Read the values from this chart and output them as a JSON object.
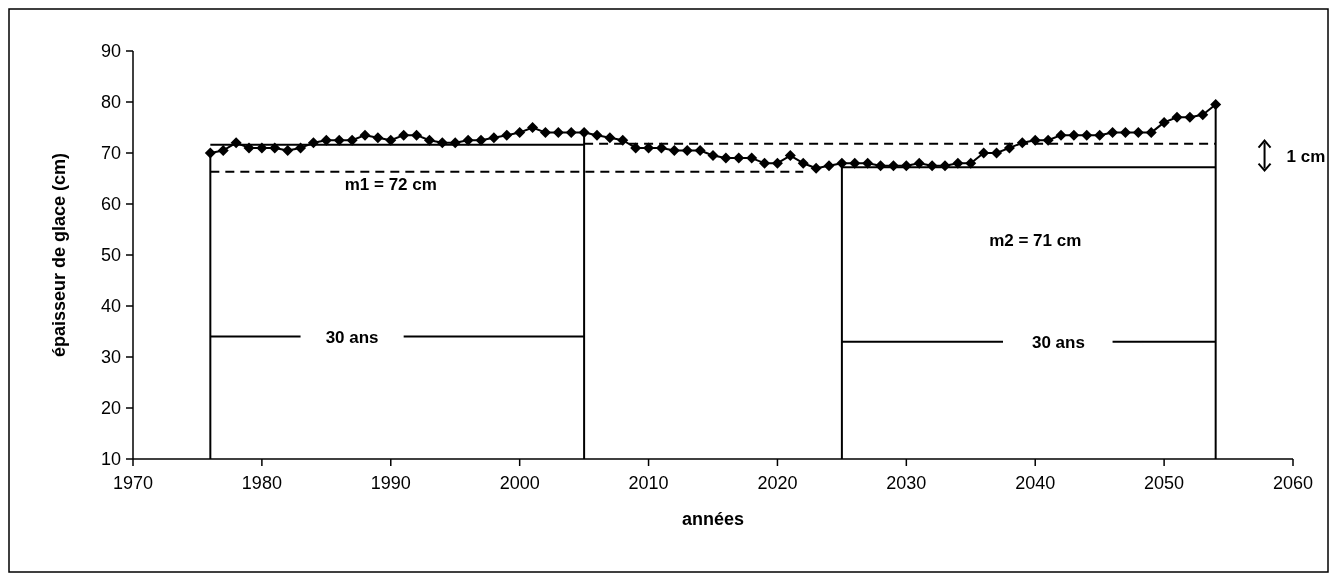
{
  "chart_data": {
    "type": "line",
    "xlabel": "années",
    "ylabel": "épaisseur de glace (cm)",
    "xlim": [
      1970,
      2060
    ],
    "xticks": [
      1970,
      1980,
      1990,
      2000,
      2010,
      2020,
      2030,
      2040,
      2050,
      2060
    ],
    "ylim": [
      10,
      90
    ],
    "yticks": [
      10,
      20,
      30,
      40,
      50,
      60,
      70,
      80,
      90
    ],
    "grid": false,
    "marker": "diamond",
    "line_style": "solid",
    "series": [
      {
        "color": "#000000",
        "x": [
          1976,
          1977,
          1978,
          1979,
          1980,
          1981,
          1982,
          1983,
          1984,
          1985,
          1986,
          1987,
          1988,
          1989,
          1990,
          1991,
          1992,
          1993,
          1994,
          1995,
          1996,
          1997,
          1998,
          1999,
          2000,
          2001,
          2002,
          2003,
          2004,
          2005,
          2006,
          2007,
          2008,
          2009,
          2010,
          2011,
          2012,
          2013,
          2014,
          2015,
          2016,
          2017,
          2018,
          2019,
          2020,
          2021,
          2022,
          2023,
          2024,
          2025,
          2026,
          2027,
          2028,
          2029,
          2030,
          2031,
          2032,
          2033,
          2034,
          2035,
          2036,
          2037,
          2038,
          2039,
          2040,
          2041,
          2042,
          2043,
          2044,
          2045,
          2046,
          2047,
          2048,
          2049,
          2050,
          2051,
          2052,
          2053,
          2054
        ],
        "values": [
          70,
          70.5,
          72,
          71,
          71,
          71,
          70.5,
          71,
          72,
          72.5,
          72.5,
          72.5,
          73.5,
          73,
          72.5,
          73.5,
          73.5,
          72.5,
          72,
          72,
          72.5,
          72.5,
          73,
          73.5,
          74,
          75,
          74,
          74,
          74,
          74,
          73.5,
          73,
          72.5,
          71,
          71,
          71,
          70.5,
          70.5,
          70.5,
          69.5,
          69,
          69,
          69,
          68,
          68,
          69.5,
          68,
          67,
          67.5,
          68,
          68,
          68,
          67.5,
          67.5,
          67.5,
          68,
          67.5,
          67.5,
          68,
          68,
          70,
          70,
          71,
          72,
          72.5,
          72.5,
          73.5,
          73.5,
          73.5,
          73.5,
          74,
          74,
          74,
          74,
          76,
          77,
          77,
          77.5,
          79.5
        ]
      },
      {
        "color": "#000000",
        "marker": "none",
        "x": [
          1976,
          2005
        ],
        "values": [
          71.6,
          71.6
        ]
      },
      {
        "color": "#000000",
        "marker": "none",
        "x": [
          2025,
          2054
        ],
        "values": [
          67.2,
          67.2
        ]
      },
      {
        "color": "#000000",
        "marker": "none",
        "line_style": "dashed",
        "x": [
          1976,
          2022
        ],
        "values": [
          66.3,
          66.3
        ]
      },
      {
        "color": "#000000",
        "marker": "none",
        "line_style": "dashed",
        "x": [
          2005,
          2054
        ],
        "values": [
          71.8,
          71.8
        ]
      },
      {
        "color": "#000000",
        "marker": "none",
        "x": [
          1976,
          1976
        ],
        "values": [
          10,
          70
        ]
      },
      {
        "color": "#000000",
        "marker": "none",
        "x": [
          2005,
          2005
        ],
        "values": [
          10,
          74
        ]
      },
      {
        "color": "#000000",
        "marker": "none",
        "x": [
          2025,
          2025
        ],
        "values": [
          10,
          68
        ]
      },
      {
        "color": "#000000",
        "marker": "none",
        "x": [
          2054,
          2054
        ],
        "values": [
          10,
          79.5
        ]
      },
      {
        "color": "#000000",
        "marker": "none",
        "x": [
          1976,
          1983
        ],
        "values": [
          34,
          34
        ]
      },
      {
        "color": "#000000",
        "marker": "none",
        "x": [
          1991,
          2005
        ],
        "values": [
          34,
          34
        ]
      },
      {
        "color": "#000000",
        "marker": "none",
        "x": [
          2025,
          2037.5
        ],
        "values": [
          33,
          33
        ]
      },
      {
        "color": "#000000",
        "marker": "none",
        "x": [
          2046,
          2054
        ],
        "values": [
          33,
          33
        ]
      }
    ],
    "annotations": [
      "m1 = 72 cm",
      "m2 = 71 cm",
      "30 ans",
      "30 ans",
      "1 cm"
    ]
  }
}
